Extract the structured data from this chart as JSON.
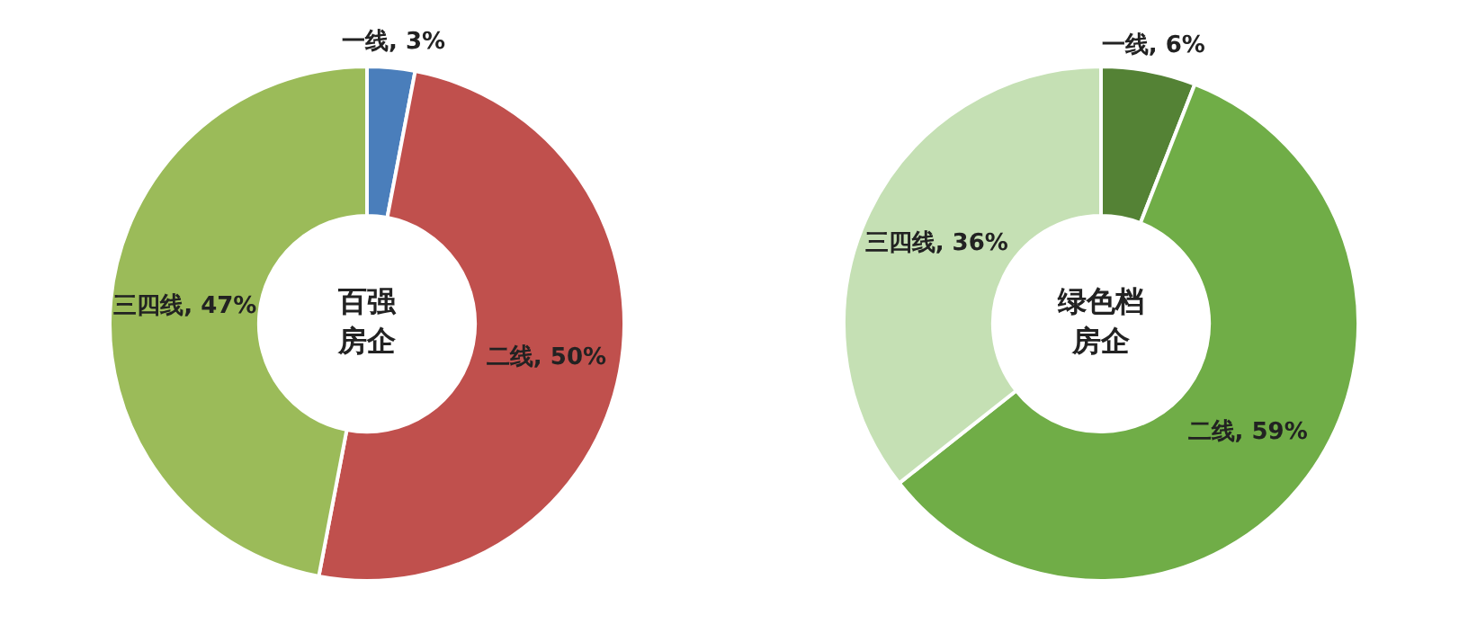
{
  "chart_data": [
    {
      "type": "donut",
      "title": "百强房企",
      "categories": [
        "一线",
        "二线",
        "三四线"
      ],
      "values": [
        3,
        50,
        47
      ],
      "colors": [
        "#4a7ebb",
        "#c0504d",
        "#9bbb59"
      ],
      "value_labels": [
        "3%",
        "50%",
        "47%"
      ]
    },
    {
      "type": "donut",
      "title": "绿色档房企",
      "categories": [
        "一线",
        "二线",
        "三四线"
      ],
      "values": [
        6,
        59,
        36
      ],
      "colors": [
        "#548235",
        "#70ad47",
        "#c5e0b4"
      ],
      "value_labels": [
        "6%",
        "59%",
        "36%"
      ]
    }
  ]
}
